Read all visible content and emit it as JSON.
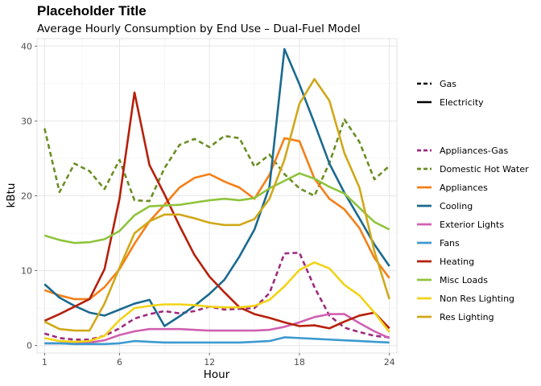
{
  "chart_data": {
    "type": "line",
    "title": "Placeholder Title",
    "subtitle": "Average Hourly Consumption by End Use – Dual-Fuel Model",
    "xlabel": "Hour",
    "ylabel": "kBtu",
    "xlim": [
      0.5,
      24.5
    ],
    "ylim": [
      -1,
      41
    ],
    "xticks": [
      1,
      6,
      12,
      18,
      24
    ],
    "yticks": [
      0,
      10,
      20,
      30,
      40
    ],
    "grid": true,
    "legend_position": "right",
    "fuel_legend": [
      {
        "name": "Gas",
        "dash": "dashed"
      },
      {
        "name": "Electricity",
        "dash": "solid"
      }
    ],
    "x": [
      1,
      2,
      3,
      4,
      5,
      6,
      7,
      8,
      9,
      10,
      11,
      12,
      13,
      14,
      15,
      16,
      17,
      18,
      19,
      20,
      21,
      22,
      23,
      24
    ],
    "series": [
      {
        "name": "Appliances-Gas",
        "fuel": "Gas",
        "color": "#9E2A7E",
        "values": [
          1.6,
          1.0,
          0.8,
          0.8,
          1.3,
          2.3,
          3.6,
          4.2,
          4.6,
          4.3,
          4.6,
          5.2,
          4.8,
          4.9,
          5.0,
          7.0,
          12.3,
          12.4,
          7.8,
          4.0,
          2.4,
          1.8,
          1.3,
          1.1
        ]
      },
      {
        "name": "Domestic Hot Water",
        "fuel": "Gas",
        "color": "#6B8E23",
        "values": [
          29.0,
          20.5,
          24.3,
          23.3,
          20.9,
          24.8,
          19.4,
          19.3,
          23.7,
          26.8,
          27.6,
          26.5,
          28.0,
          27.7,
          23.9,
          25.5,
          22.9,
          21.0,
          20.0,
          24.4,
          30.2,
          27.2,
          22.2,
          24.0
        ]
      },
      {
        "name": "Appliances",
        "fuel": "Electricity",
        "color": "#F57F17",
        "values": [
          7.4,
          6.7,
          6.2,
          6.2,
          7.8,
          10.2,
          13.6,
          16.6,
          18.8,
          21.1,
          22.4,
          22.9,
          21.9,
          21.1,
          19.6,
          22.8,
          27.7,
          27.3,
          22.3,
          19.6,
          18.2,
          15.7,
          11.7,
          9.0
        ]
      },
      {
        "name": "Cooling",
        "fuel": "Electricity",
        "color": "#1B6A8F",
        "values": [
          8.2,
          6.4,
          5.3,
          4.4,
          4.0,
          4.8,
          5.6,
          6.1,
          2.6,
          3.9,
          5.3,
          6.9,
          8.8,
          11.9,
          15.5,
          21.2,
          39.6,
          34.9,
          29.7,
          24.3,
          20.4,
          17.0,
          13.5,
          10.6
        ]
      },
      {
        "name": "Exterior Lights",
        "fuel": "Electricity",
        "color": "#D060B0",
        "values": [
          0.3,
          0.3,
          0.3,
          0.4,
          0.7,
          1.4,
          1.9,
          2.2,
          2.2,
          2.2,
          2.1,
          2.0,
          2.0,
          2.0,
          2.0,
          2.1,
          2.5,
          3.1,
          3.8,
          4.2,
          4.2,
          3.0,
          1.9,
          1.0
        ]
      },
      {
        "name": "Fans",
        "fuel": "Electricity",
        "color": "#3C9AD0",
        "values": [
          0.3,
          0.3,
          0.2,
          0.2,
          0.2,
          0.3,
          0.6,
          0.5,
          0.4,
          0.4,
          0.4,
          0.4,
          0.4,
          0.4,
          0.5,
          0.6,
          1.1,
          1.0,
          0.9,
          0.8,
          0.7,
          0.6,
          0.5,
          0.4
        ]
      },
      {
        "name": "Heating",
        "fuel": "Electricity",
        "color": "#B5200A",
        "values": [
          3.3,
          4.2,
          5.2,
          6.2,
          10.2,
          19.6,
          33.8,
          24.1,
          20.2,
          16.0,
          12.1,
          9.2,
          7.1,
          5.1,
          4.2,
          3.7,
          3.1,
          2.6,
          2.7,
          2.3,
          3.2,
          4.0,
          4.4,
          2.3
        ]
      },
      {
        "name": "Misc Loads",
        "fuel": "Electricity",
        "color": "#8FC43D",
        "values": [
          14.7,
          14.1,
          13.7,
          13.8,
          14.2,
          15.3,
          17.4,
          18.6,
          18.7,
          18.8,
          19.1,
          19.4,
          19.6,
          19.4,
          19.7,
          21.0,
          22.0,
          23.0,
          22.3,
          21.2,
          20.3,
          18.4,
          16.5,
          15.5
        ]
      },
      {
        "name": "Non Res Lighting",
        "fuel": "Electricity",
        "color": "#F2D317",
        "values": [
          1.0,
          0.6,
          0.5,
          0.6,
          1.3,
          3.4,
          5.0,
          5.3,
          5.5,
          5.5,
          5.4,
          5.2,
          5.1,
          5.1,
          5.3,
          6.1,
          7.9,
          10.1,
          11.1,
          10.3,
          8.1,
          6.7,
          4.4,
          1.8
        ]
      },
      {
        "name": "Res Lighting",
        "fuel": "Electricity",
        "color": "#D0A81A",
        "values": [
          3.2,
          2.2,
          2.0,
          2.0,
          5.6,
          10.4,
          15.0,
          16.6,
          17.5,
          17.5,
          17.0,
          16.4,
          16.1,
          16.1,
          16.9,
          19.6,
          24.8,
          32.3,
          35.6,
          32.7,
          25.7,
          21.1,
          12.6,
          6.2
        ]
      }
    ]
  }
}
